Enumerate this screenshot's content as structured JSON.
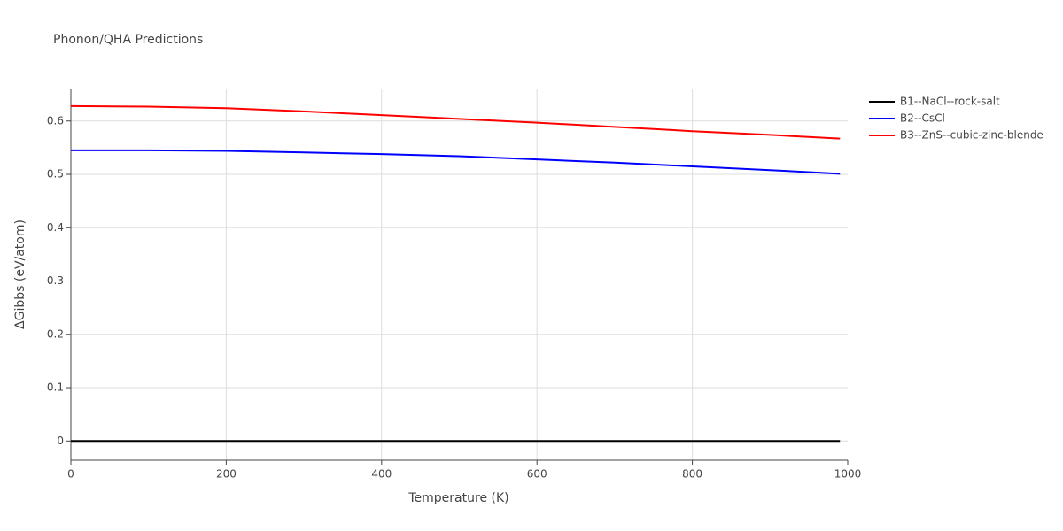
{
  "chart_data": {
    "type": "line",
    "title": "Phonon/QHA Predictions",
    "x_label": "Temperature (K)",
    "y_label": "ΔGibbs (eV/atom)",
    "x": [
      0,
      100,
      200,
      300,
      400,
      500,
      600,
      700,
      800,
      900,
      990
    ],
    "series": [
      {
        "name": "B1--NaCl--rock-salt",
        "color": "#000000",
        "values": [
          0,
          0,
          0,
          0,
          0,
          0,
          0,
          0,
          0,
          0,
          0
        ]
      },
      {
        "name": "B2--CsCl",
        "color": "#0000ff",
        "values": [
          0.545,
          0.545,
          0.544,
          0.541,
          0.538,
          0.534,
          0.528,
          0.522,
          0.515,
          0.508,
          0.501
        ]
      },
      {
        "name": "B3--ZnS--cubic-zinc-blende",
        "color": "#ff0000",
        "values": [
          0.628,
          0.627,
          0.624,
          0.618,
          0.611,
          0.604,
          0.597,
          0.589,
          0.581,
          0.574,
          0.567
        ]
      }
    ],
    "xlim": [
      0,
      1000
    ],
    "xticks": [
      0,
      200,
      400,
      600,
      800,
      1000
    ],
    "ylim": [
      -0.036,
      0.661
    ],
    "yticks": [
      0,
      0.1,
      0.2,
      0.3,
      0.4,
      0.5,
      0.6
    ],
    "grid": true,
    "legend": "outside-right"
  }
}
